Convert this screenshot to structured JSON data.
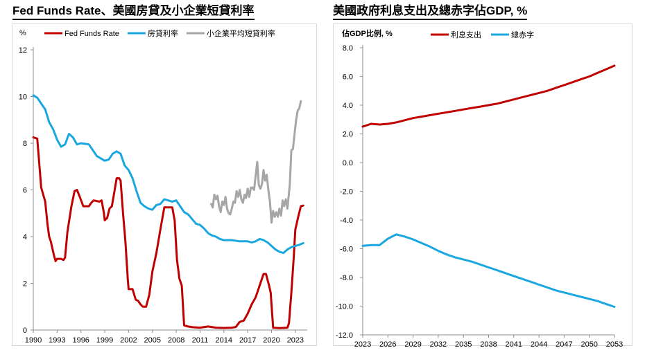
{
  "titles": {
    "left": "Fed Funds Rate、美國房貸及小企業短貸利率",
    "right": "美國政府利息支出及總赤字佔GDP, %"
  },
  "chart_data": [
    {
      "type": "line",
      "title": "Fed Funds Rate、美國房貸及小企業短貸利率",
      "ylabel": "%",
      "xlim": [
        1990,
        2024.5
      ],
      "ylim": [
        0,
        12
      ],
      "yticks": [
        "0",
        "2",
        "4",
        "6",
        "8",
        "10",
        "12"
      ],
      "xticks": [
        "1990",
        "1993",
        "1996",
        "1999",
        "2002",
        "2005",
        "2008",
        "2011",
        "2014",
        "2017",
        "2020",
        "2023"
      ],
      "grid": false,
      "legend": "top",
      "series": [
        {
          "name": "Fed Funds Rate",
          "color": "#c00000",
          "points": [
            [
              1990.0,
              8.25
            ],
            [
              1990.5,
              8.2
            ],
            [
              1991.0,
              6.1
            ],
            [
              1991.5,
              5.5
            ],
            [
              1991.8,
              4.5
            ],
            [
              1992.0,
              4.0
            ],
            [
              1992.2,
              3.8
            ],
            [
              1992.6,
              3.2
            ],
            [
              1992.8,
              2.95
            ],
            [
              1993.0,
              3.05
            ],
            [
              1993.5,
              3.05
            ],
            [
              1993.8,
              3.0
            ],
            [
              1994.0,
              3.1
            ],
            [
              1994.3,
              4.2
            ],
            [
              1994.8,
              5.3
            ],
            [
              1995.2,
              5.95
            ],
            [
              1995.5,
              6.0
            ],
            [
              1995.8,
              5.75
            ],
            [
              1996.3,
              5.3
            ],
            [
              1997.0,
              5.3
            ],
            [
              1997.3,
              5.45
            ],
            [
              1997.6,
              5.55
            ],
            [
              1998.3,
              5.5
            ],
            [
              1998.6,
              5.55
            ],
            [
              1998.9,
              5.0
            ],
            [
              1999.0,
              4.7
            ],
            [
              1999.3,
              4.8
            ],
            [
              1999.6,
              5.2
            ],
            [
              1999.9,
              5.3
            ],
            [
              2000.2,
              5.9
            ],
            [
              2000.5,
              6.5
            ],
            [
              2000.8,
              6.5
            ],
            [
              2001.0,
              6.4
            ],
            [
              2001.3,
              5.0
            ],
            [
              2001.6,
              3.8
            ],
            [
              2001.9,
              2.2
            ],
            [
              2002.0,
              1.75
            ],
            [
              2002.5,
              1.75
            ],
            [
              2002.9,
              1.3
            ],
            [
              2003.2,
              1.25
            ],
            [
              2003.5,
              1.1
            ],
            [
              2003.8,
              1.0
            ],
            [
              2004.2,
              1.0
            ],
            [
              2004.6,
              1.5
            ],
            [
              2005.0,
              2.5
            ],
            [
              2005.5,
              3.3
            ],
            [
              2006.0,
              4.3
            ],
            [
              2006.5,
              5.25
            ],
            [
              2007.0,
              5.25
            ],
            [
              2007.5,
              5.25
            ],
            [
              2007.8,
              4.7
            ],
            [
              2008.1,
              3.0
            ],
            [
              2008.4,
              2.2
            ],
            [
              2008.7,
              1.9
            ],
            [
              2009.0,
              0.2
            ],
            [
              2009.5,
              0.15
            ],
            [
              2010.0,
              0.12
            ],
            [
              2011.0,
              0.1
            ],
            [
              2012.0,
              0.15
            ],
            [
              2013.0,
              0.1
            ],
            [
              2014.0,
              0.09
            ],
            [
              2015.0,
              0.1
            ],
            [
              2015.5,
              0.13
            ],
            [
              2016.0,
              0.35
            ],
            [
              2016.5,
              0.4
            ],
            [
              2017.0,
              0.7
            ],
            [
              2017.5,
              1.1
            ],
            [
              2018.0,
              1.4
            ],
            [
              2018.5,
              1.9
            ],
            [
              2019.0,
              2.4
            ],
            [
              2019.3,
              2.4
            ],
            [
              2019.7,
              1.9
            ],
            [
              2019.9,
              1.6
            ],
            [
              2020.2,
              0.1
            ],
            [
              2021.0,
              0.08
            ],
            [
              2022.0,
              0.1
            ],
            [
              2022.2,
              0.3
            ],
            [
              2022.5,
              1.6
            ],
            [
              2022.8,
              3.1
            ],
            [
              2023.0,
              4.3
            ],
            [
              2023.4,
              4.9
            ],
            [
              2023.7,
              5.3
            ],
            [
              2024.0,
              5.33
            ]
          ]
        },
        {
          "name": "房貸利率",
          "color": "#1aa7e0",
          "points": [
            [
              1990.0,
              10.05
            ],
            [
              1990.5,
              9.95
            ],
            [
              1991.0,
              9.7
            ],
            [
              1991.5,
              9.45
            ],
            [
              1992.0,
              8.9
            ],
            [
              1992.5,
              8.6
            ],
            [
              1993.0,
              8.15
            ],
            [
              1993.5,
              7.85
            ],
            [
              1994.0,
              7.95
            ],
            [
              1994.5,
              8.4
            ],
            [
              1995.0,
              8.25
            ],
            [
              1995.5,
              7.95
            ],
            [
              1996.0,
              8.0
            ],
            [
              1997.0,
              7.95
            ],
            [
              1997.5,
              7.7
            ],
            [
              1998.0,
              7.45
            ],
            [
              1998.5,
              7.35
            ],
            [
              1999.0,
              7.25
            ],
            [
              1999.5,
              7.3
            ],
            [
              2000.0,
              7.55
            ],
            [
              2000.5,
              7.65
            ],
            [
              2001.0,
              7.55
            ],
            [
              2001.5,
              7.05
            ],
            [
              2002.0,
              6.85
            ],
            [
              2002.5,
              6.5
            ],
            [
              2003.0,
              5.95
            ],
            [
              2003.5,
              5.45
            ],
            [
              2004.0,
              5.3
            ],
            [
              2004.5,
              5.2
            ],
            [
              2005.0,
              5.15
            ],
            [
              2005.5,
              5.35
            ],
            [
              2006.0,
              5.4
            ],
            [
              2006.5,
              5.6
            ],
            [
              2007.0,
              5.55
            ],
            [
              2007.5,
              5.5
            ],
            [
              2008.0,
              5.55
            ],
            [
              2008.5,
              5.3
            ],
            [
              2009.0,
              5.05
            ],
            [
              2009.5,
              4.95
            ],
            [
              2010.0,
              4.75
            ],
            [
              2010.5,
              4.55
            ],
            [
              2011.0,
              4.5
            ],
            [
              2011.5,
              4.35
            ],
            [
              2012.0,
              4.15
            ],
            [
              2012.5,
              4.05
            ],
            [
              2013.0,
              4.0
            ],
            [
              2013.5,
              3.9
            ],
            [
              2014.0,
              3.85
            ],
            [
              2014.5,
              3.85
            ],
            [
              2015.0,
              3.85
            ],
            [
              2016.0,
              3.8
            ],
            [
              2017.0,
              3.8
            ],
            [
              2017.5,
              3.75
            ],
            [
              2018.0,
              3.8
            ],
            [
              2018.5,
              3.9
            ],
            [
              2019.0,
              3.85
            ],
            [
              2019.5,
              3.75
            ],
            [
              2020.0,
              3.6
            ],
            [
              2020.5,
              3.45
            ],
            [
              2021.0,
              3.35
            ],
            [
              2021.5,
              3.3
            ],
            [
              2022.0,
              3.45
            ],
            [
              2022.5,
              3.55
            ],
            [
              2023.0,
              3.6
            ],
            [
              2023.5,
              3.65
            ],
            [
              2024.0,
              3.72
            ]
          ]
        },
        {
          "name": "小企業平均短貸利率",
          "color": "#a6a6a6",
          "points": [
            [
              2012.4,
              5.4
            ],
            [
              2012.6,
              5.25
            ],
            [
              2012.8,
              5.8
            ],
            [
              2013.0,
              5.6
            ],
            [
              2013.2,
              5.75
            ],
            [
              2013.4,
              5.3
            ],
            [
              2013.6,
              5.05
            ],
            [
              2013.8,
              5.5
            ],
            [
              2014.0,
              5.35
            ],
            [
              2014.2,
              5.7
            ],
            [
              2014.4,
              5.2
            ],
            [
              2014.6,
              5.0
            ],
            [
              2014.8,
              4.95
            ],
            [
              2015.0,
              5.2
            ],
            [
              2015.2,
              5.5
            ],
            [
              2015.4,
              5.45
            ],
            [
              2015.6,
              5.95
            ],
            [
              2015.8,
              5.7
            ],
            [
              2016.0,
              6.0
            ],
            [
              2016.2,
              5.6
            ],
            [
              2016.4,
              5.45
            ],
            [
              2016.6,
              5.8
            ],
            [
              2016.8,
              5.65
            ],
            [
              2017.0,
              6.05
            ],
            [
              2017.2,
              5.7
            ],
            [
              2017.4,
              6.1
            ],
            [
              2017.6,
              6.1
            ],
            [
              2017.8,
              6.0
            ],
            [
              2018.0,
              6.6
            ],
            [
              2018.2,
              7.2
            ],
            [
              2018.4,
              6.2
            ],
            [
              2018.6,
              6.05
            ],
            [
              2018.8,
              6.25
            ],
            [
              2019.0,
              6.85
            ],
            [
              2019.2,
              6.4
            ],
            [
              2019.4,
              6.65
            ],
            [
              2019.6,
              6.0
            ],
            [
              2019.8,
              5.5
            ],
            [
              2020.0,
              4.6
            ],
            [
              2020.2,
              5.1
            ],
            [
              2020.4,
              4.85
            ],
            [
              2020.6,
              5.05
            ],
            [
              2020.8,
              4.85
            ],
            [
              2021.0,
              5.2
            ],
            [
              2021.2,
              4.9
            ],
            [
              2021.4,
              5.55
            ],
            [
              2021.6,
              5.3
            ],
            [
              2021.8,
              5.6
            ],
            [
              2022.0,
              5.2
            ],
            [
              2022.3,
              6.2
            ],
            [
              2022.5,
              7.7
            ],
            [
              2022.7,
              7.75
            ],
            [
              2022.9,
              8.4
            ],
            [
              2023.1,
              9.0
            ],
            [
              2023.3,
              9.4
            ],
            [
              2023.5,
              9.5
            ],
            [
              2023.7,
              9.8
            ]
          ]
        }
      ]
    },
    {
      "type": "line",
      "title": "美國政府利息支出及總赤字佔GDP, %",
      "ylabel": "佔GDP比例, %",
      "xlim": [
        2023,
        2053
      ],
      "ylim": [
        -12,
        8
      ],
      "yticks": [
        "-12.0",
        "-10.0",
        "-8.0",
        "-6.0",
        "-4.0",
        "-2.0",
        "0.0",
        "2.0",
        "4.0",
        "6.0",
        "8.0"
      ],
      "xticks": [
        "2023",
        "2026",
        "2029",
        "2032",
        "2035",
        "2038",
        "2041",
        "2044",
        "2047",
        "2050",
        "2053"
      ],
      "grid": false,
      "legend": "top",
      "series": [
        {
          "name": "利息支出",
          "color": "#c00000",
          "x": [
            2023,
            2024,
            2025,
            2026,
            2027,
            2028,
            2029,
            2030,
            2031,
            2032,
            2033,
            2034,
            2035,
            2036,
            2037,
            2038,
            2039,
            2040,
            2041,
            2042,
            2043,
            2044,
            2045,
            2046,
            2047,
            2048,
            2049,
            2050,
            2051,
            2052,
            2053
          ],
          "values": [
            2.5,
            2.7,
            2.65,
            2.7,
            2.8,
            2.95,
            3.1,
            3.2,
            3.3,
            3.4,
            3.5,
            3.6,
            3.7,
            3.8,
            3.9,
            4.0,
            4.1,
            4.25,
            4.4,
            4.55,
            4.7,
            4.85,
            5.0,
            5.2,
            5.4,
            5.6,
            5.8,
            6.0,
            6.25,
            6.5,
            6.75
          ]
        },
        {
          "name": "總赤字",
          "color": "#1aa7e0",
          "x": [
            2023,
            2024,
            2025,
            2026,
            2027,
            2028,
            2029,
            2030,
            2031,
            2032,
            2033,
            2034,
            2035,
            2036,
            2037,
            2038,
            2039,
            2040,
            2041,
            2042,
            2043,
            2044,
            2045,
            2046,
            2047,
            2048,
            2049,
            2050,
            2051,
            2052,
            2053
          ],
          "values": [
            -5.8,
            -5.75,
            -5.75,
            -5.3,
            -5.0,
            -5.15,
            -5.35,
            -5.6,
            -5.85,
            -6.15,
            -6.4,
            -6.6,
            -6.75,
            -6.9,
            -7.1,
            -7.3,
            -7.5,
            -7.7,
            -7.9,
            -8.1,
            -8.3,
            -8.5,
            -8.7,
            -8.9,
            -9.05,
            -9.2,
            -9.35,
            -9.5,
            -9.65,
            -9.85,
            -10.05
          ]
        }
      ]
    }
  ]
}
